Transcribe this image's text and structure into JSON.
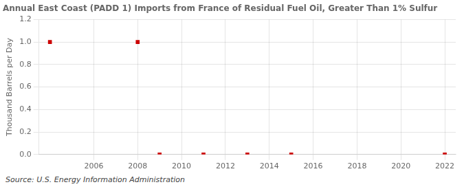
{
  "chart_data": {
    "type": "scatter",
    "title": "Annual East Coast (PADD 1) Imports from France of Residual Fuel Oil, Greater Than 1% Sulfur",
    "ylabel": "Thousand Barrels per Day",
    "annotations": [
      "Source: U.S. Energy Information Administration"
    ],
    "x": [
      2004,
      2008,
      2009,
      2011,
      2013,
      2015,
      2022
    ],
    "values": [
      1.0,
      1.0,
      0.0,
      0.0,
      0.0,
      0.0,
      0.0
    ],
    "color": "#cc0000",
    "marker": "square",
    "xlim": [
      2003.5,
      2022.5
    ],
    "xticks": [
      2006,
      2008,
      2010,
      2012,
      2014,
      2016,
      2018,
      2020,
      2022
    ],
    "ylim": [
      0.0,
      1.2
    ],
    "yticks": [
      {
        "value": 0.0,
        "label": "0.0"
      },
      0.2,
      0.4,
      0.6,
      0.8,
      {
        "value": 1.0,
        "label": "1.0"
      },
      1.2
    ],
    "grid": true
  }
}
